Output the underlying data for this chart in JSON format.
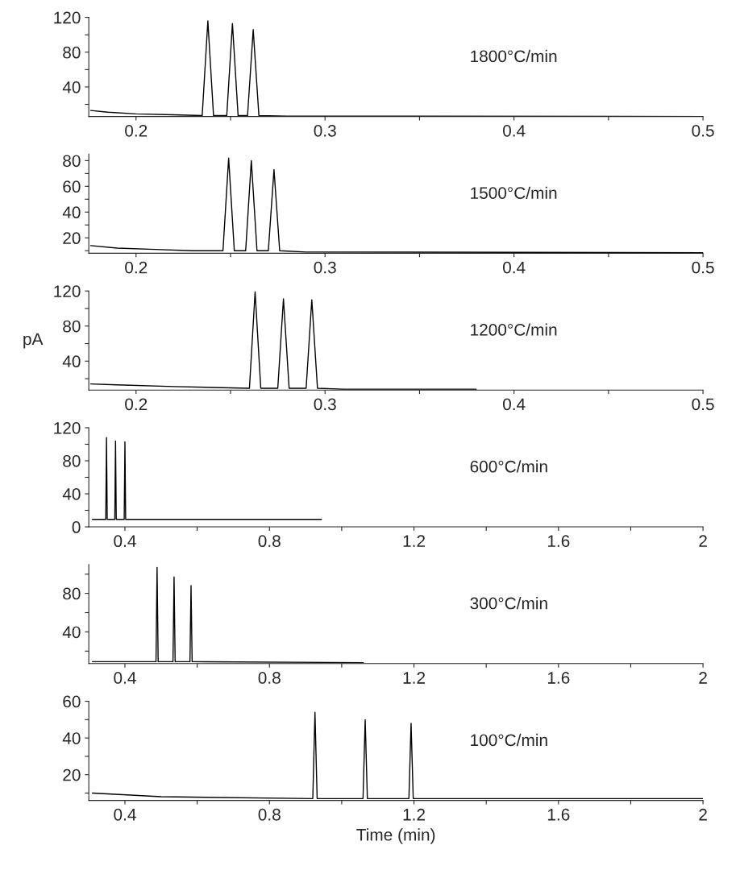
{
  "chart_data": [
    {
      "type": "line",
      "annotations": [
        "1800°C/min"
      ],
      "xlim": [
        0.175,
        0.5
      ],
      "ylim": [
        6,
        120
      ],
      "xticks": [
        0.2,
        {
          "value": 0.25,
          "label": null
        },
        0.3,
        {
          "value": 0.35,
          "label": null
        },
        0.4,
        {
          "value": 0.45,
          "label": null
        },
        0.5
      ],
      "yticks": [
        {
          "value": 20,
          "label": null
        },
        40,
        {
          "value": 60,
          "label": null
        },
        80,
        {
          "value": 100,
          "label": null
        },
        120
      ],
      "grid": false,
      "legend": false,
      "series": [
        {
          "color": "#000000",
          "x": [
            0.176,
            0.185,
            0.2,
            0.22,
            0.235,
            0.238,
            0.241,
            0.248,
            0.251,
            0.254,
            0.259,
            0.262,
            0.265,
            0.28,
            0.5
          ],
          "values": [
            13,
            11,
            9,
            8,
            7,
            116,
            7,
            7,
            113,
            7,
            7,
            106,
            7,
            6.5,
            6
          ]
        }
      ]
    },
    {
      "type": "line",
      "annotations": [
        "1500°C/min"
      ],
      "xlim": [
        0.175,
        0.5
      ],
      "ylim": [
        8,
        85
      ],
      "xticks": [
        0.2,
        {
          "value": 0.25,
          "label": null
        },
        0.3,
        {
          "value": 0.35,
          "label": null
        },
        0.4,
        {
          "value": 0.45,
          "label": null
        },
        0.5
      ],
      "yticks": [
        {
          "value": 10,
          "label": null
        },
        20,
        {
          "value": 30,
          "label": null
        },
        40,
        {
          "value": 50,
          "label": null
        },
        60,
        {
          "value": 70,
          "label": null
        },
        80
      ],
      "grid": false,
      "legend": false,
      "series": [
        {
          "color": "#000000",
          "x": [
            0.176,
            0.19,
            0.21,
            0.23,
            0.246,
            0.249,
            0.252,
            0.258,
            0.261,
            0.264,
            0.27,
            0.273,
            0.276,
            0.29,
            0.5
          ],
          "values": [
            14,
            12,
            11,
            10,
            10,
            82,
            10,
            10,
            80,
            10,
            10,
            73,
            10,
            9,
            8.5
          ]
        }
      ]
    },
    {
      "type": "line",
      "annotations": [
        "1200°C/min"
      ],
      "ylabel": "pA",
      "xlim": [
        0.175,
        0.5
      ],
      "ylim": [
        7,
        120
      ],
      "xticks": [
        0.2,
        {
          "value": 0.25,
          "label": null
        },
        0.3,
        {
          "value": 0.35,
          "label": null
        },
        0.4,
        {
          "value": 0.45,
          "label": null
        },
        0.5
      ],
      "yticks": [
        {
          "value": 20,
          "label": null
        },
        40,
        {
          "value": 60,
          "label": null
        },
        80,
        {
          "value": 100,
          "label": null
        },
        120
      ],
      "grid": false,
      "legend": false,
      "series": [
        {
          "color": "#000000",
          "x": [
            0.176,
            0.19,
            0.22,
            0.26,
            0.263,
            0.266,
            0.275,
            0.278,
            0.281,
            0.29,
            0.293,
            0.296,
            0.31,
            0.38
          ],
          "values": [
            14,
            13,
            11,
            9,
            119,
            9,
            9,
            111,
            9,
            9,
            110,
            9,
            8,
            8
          ]
        }
      ]
    },
    {
      "type": "line",
      "annotations": [
        "600°C/min"
      ],
      "xlim": [
        0.3,
        2
      ],
      "ylim": [
        0,
        120
      ],
      "xticks": [
        0.4,
        {
          "value": 0.6,
          "label": null
        },
        0.8,
        {
          "value": 1.0,
          "label": null
        },
        1.2,
        {
          "value": 1.4,
          "label": null
        },
        1.6,
        {
          "value": 1.8,
          "label": null
        },
        2
      ],
      "yticks": [
        0,
        {
          "value": 20,
          "label": null
        },
        40,
        {
          "value": 60,
          "label": null
        },
        80,
        {
          "value": 100,
          "label": null
        },
        120
      ],
      "grid": false,
      "legend": false,
      "series": [
        {
          "color": "#000000",
          "x": [
            0.31,
            0.347,
            0.349,
            0.351,
            0.372,
            0.374,
            0.376,
            0.398,
            0.4,
            0.402,
            0.944
          ],
          "values": [
            9,
            9,
            108,
            9,
            9,
            104,
            9,
            9,
            103,
            9,
            9
          ]
        }
      ]
    },
    {
      "type": "line",
      "annotations": [
        "300°C/min"
      ],
      "xlim": [
        0.3,
        2
      ],
      "ylim": [
        7,
        110
      ],
      "xticks": [
        0.4,
        {
          "value": 0.6,
          "label": null
        },
        0.8,
        {
          "value": 1.0,
          "label": null
        },
        1.2,
        {
          "value": 1.4,
          "label": null
        },
        1.6,
        {
          "value": 1.8,
          "label": null
        },
        2
      ],
      "yticks": [
        {
          "value": 20,
          "label": null
        },
        40,
        {
          "value": 60,
          "label": null
        },
        80,
        {
          "value": 100,
          "label": null
        }
      ],
      "grid": false,
      "legend": false,
      "series": [
        {
          "color": "#000000",
          "x": [
            0.31,
            0.486,
            0.489,
            0.492,
            0.533,
            0.536,
            0.539,
            0.58,
            0.583,
            0.586,
            1.06
          ],
          "values": [
            9,
            9,
            107,
            9,
            9,
            97,
            9,
            9,
            88,
            9,
            8
          ]
        }
      ]
    },
    {
      "type": "line",
      "annotations": [
        "100°C/min"
      ],
      "xlabel": "Time (min)",
      "xlim": [
        0.3,
        2
      ],
      "ylim": [
        6,
        60
      ],
      "xticks": [
        0.4,
        {
          "value": 0.6,
          "label": null
        },
        0.8,
        {
          "value": 1.0,
          "label": null
        },
        1.2,
        {
          "value": 1.4,
          "label": null
        },
        1.6,
        {
          "value": 1.8,
          "label": null
        },
        2
      ],
      "yticks": [
        {
          "value": 10,
          "label": null
        },
        20,
        {
          "value": 30,
          "label": null
        },
        40,
        {
          "value": 50,
          "label": null
        },
        60
      ],
      "grid": false,
      "legend": false,
      "series": [
        {
          "color": "#000000",
          "x": [
            0.31,
            0.5,
            0.92,
            0.926,
            0.932,
            1.059,
            1.065,
            1.071,
            1.186,
            1.192,
            1.198,
            2.0
          ],
          "values": [
            10,
            8,
            7,
            54,
            7,
            7,
            50,
            7,
            7,
            48,
            7,
            7
          ]
        }
      ]
    }
  ]
}
